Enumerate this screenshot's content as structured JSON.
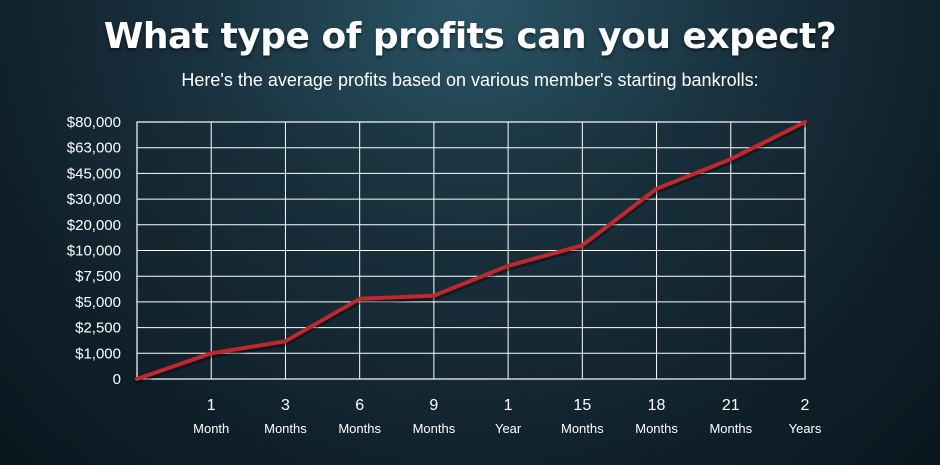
{
  "header": {
    "title": "What type of profits can you expect?",
    "subtitle": "Here's the average profits based on various member's starting bankrolls:"
  },
  "chart_data": {
    "type": "line",
    "title": "What type of profits can you expect?",
    "subtitle": "Here's the average profits based on various member's starting bankrolls:",
    "xlabel": "",
    "ylabel": "",
    "y_ticks": [
      "0",
      "$1,000",
      "$2,500",
      "$5,000",
      "$7,500",
      "$10,000",
      "$20,000",
      "$30,000",
      "$45,000",
      "$63,000",
      "$80,000"
    ],
    "x_ticks": [
      {
        "num": "",
        "unit": ""
      },
      {
        "num": "1",
        "unit": "Month"
      },
      {
        "num": "3",
        "unit": "Months"
      },
      {
        "num": "6",
        "unit": "Months"
      },
      {
        "num": "9",
        "unit": "Months"
      },
      {
        "num": "1",
        "unit": "Year"
      },
      {
        "num": "15",
        "unit": "Months"
      },
      {
        "num": "18",
        "unit": "Months"
      },
      {
        "num": "21",
        "unit": "Months"
      },
      {
        "num": "2",
        "unit": "Years"
      }
    ],
    "series": [
      {
        "values": [
          "0",
          "$1,000",
          "$1,700",
          "$5,300",
          "$5,600",
          "$8,500",
          "$12,000",
          "$36,000",
          "$55,000",
          "$80,000"
        ]
      }
    ],
    "grid": true,
    "legend": "none",
    "colors": {
      "line": "#c0282d",
      "grid": "#ffffff",
      "background": "#13262f"
    }
  }
}
